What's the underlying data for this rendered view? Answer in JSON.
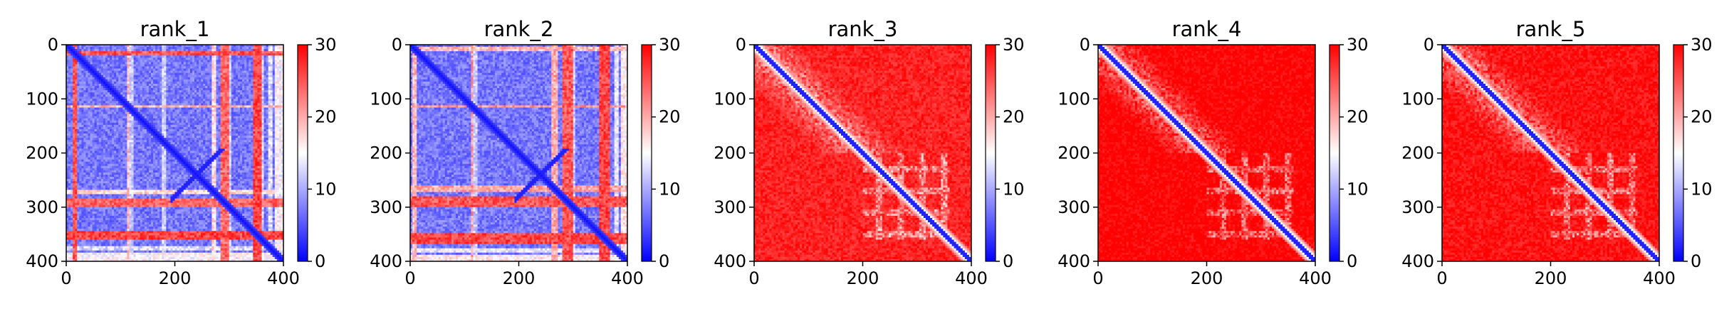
{
  "chart_data": [
    {
      "type": "heatmap",
      "title": "rank_1",
      "matrix_size": 400,
      "xlim": [
        0,
        400
      ],
      "ylim": [
        400,
        0
      ],
      "xticks": [
        "0",
        "200",
        "400"
      ],
      "yticks": [
        "0",
        "100",
        "200",
        "300",
        "400"
      ],
      "colorbar": {
        "range": [
          0,
          30
        ],
        "ticks": [
          "0",
          "10",
          "20",
          "30"
        ],
        "colormap": "bwr",
        "low_color": "#0000ff",
        "mid_color": "#ffffff",
        "high_color": "#ff0000"
      },
      "background_level": 7,
      "pattern": "low",
      "bands": [
        {
          "from": 12,
          "to": 22,
          "value": 25
        },
        {
          "from": 112,
          "to": 118,
          "value": 19
        },
        {
          "from": 268,
          "to": 276,
          "value": 17
        },
        {
          "from": 286,
          "to": 300,
          "value": 24
        },
        {
          "from": 345,
          "to": 362,
          "value": 26
        },
        {
          "from": 372,
          "to": 380,
          "value": 13
        },
        {
          "from": 385,
          "to": 400,
          "value": 15
        }
      ],
      "light_columns": [
        120,
        180,
        300,
        360
      ]
    },
    {
      "type": "heatmap",
      "title": "rank_2",
      "matrix_size": 400,
      "xlim": [
        0,
        400
      ],
      "ylim": [
        400,
        0
      ],
      "xticks": [
        "0",
        "200",
        "400"
      ],
      "yticks": [
        "0",
        "100",
        "200",
        "300",
        "400"
      ],
      "colorbar": {
        "range": [
          0,
          30
        ],
        "ticks": [
          "0",
          "10",
          "20",
          "30"
        ],
        "colormap": "bwr",
        "low_color": "#0000ff",
        "mid_color": "#ffffff",
        "high_color": "#ff0000"
      },
      "background_level": 7,
      "pattern": "low",
      "bands": [
        {
          "from": 5,
          "to": 14,
          "value": 19
        },
        {
          "from": 112,
          "to": 118,
          "value": 21
        },
        {
          "from": 262,
          "to": 272,
          "value": 20
        },
        {
          "from": 282,
          "to": 300,
          "value": 25
        },
        {
          "from": 350,
          "to": 368,
          "value": 26
        },
        {
          "from": 376,
          "to": 384,
          "value": 14
        },
        {
          "from": 388,
          "to": 400,
          "value": 16
        }
      ],
      "light_columns": [
        120,
        285,
        300,
        360
      ]
    },
    {
      "type": "heatmap",
      "title": "rank_3",
      "matrix_size": 400,
      "xlim": [
        0,
        400
      ],
      "ylim": [
        400,
        0
      ],
      "xticks": [
        "0",
        "200",
        "400"
      ],
      "yticks": [
        "0",
        "100",
        "200",
        "300",
        "400"
      ],
      "colorbar": {
        "range": [
          0,
          30
        ],
        "ticks": [
          "0",
          "10",
          "20",
          "30"
        ],
        "colormap": "bwr",
        "low_color": "#0000ff",
        "mid_color": "#ffffff",
        "high_color": "#ff0000"
      },
      "background_level": 28,
      "pattern": "high",
      "bands": [],
      "light_columns": []
    },
    {
      "type": "heatmap",
      "title": "rank_4",
      "matrix_size": 400,
      "xlim": [
        0,
        400
      ],
      "ylim": [
        400,
        0
      ],
      "xticks": [
        "0",
        "200",
        "400"
      ],
      "yticks": [
        "0",
        "100",
        "200",
        "300",
        "400"
      ],
      "colorbar": {
        "range": [
          0,
          30
        ],
        "ticks": [
          "0",
          "10",
          "20",
          "30"
        ],
        "colormap": "bwr",
        "low_color": "#0000ff",
        "mid_color": "#ffffff",
        "high_color": "#ff0000"
      },
      "background_level": 30,
      "pattern": "high",
      "bands": [],
      "light_columns": []
    },
    {
      "type": "heatmap",
      "title": "rank_5",
      "matrix_size": 400,
      "xlim": [
        0,
        400
      ],
      "ylim": [
        400,
        0
      ],
      "xticks": [
        "0",
        "200",
        "400"
      ],
      "yticks": [
        "0",
        "100",
        "200",
        "300",
        "400"
      ],
      "colorbar": {
        "range": [
          0,
          30
        ],
        "ticks": [
          "0",
          "10",
          "20",
          "30"
        ],
        "colormap": "bwr",
        "low_color": "#0000ff",
        "mid_color": "#ffffff",
        "high_color": "#ff0000"
      },
      "background_level": 29,
      "pattern": "high",
      "bands": [],
      "light_columns": []
    }
  ]
}
